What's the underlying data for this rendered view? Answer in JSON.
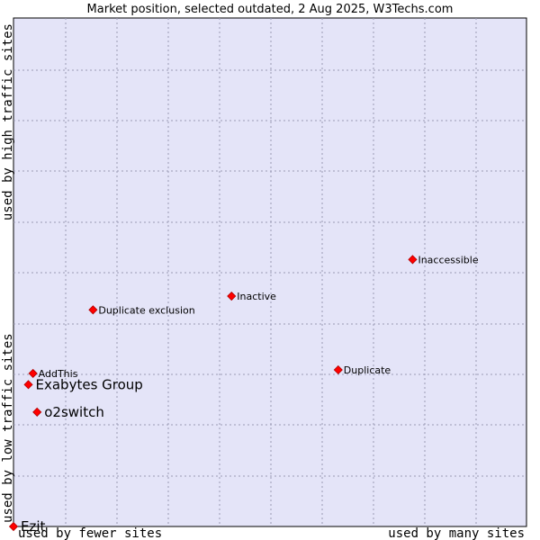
{
  "chart_data": {
    "type": "scatter",
    "title": "Market position, selected outdated, 2 Aug 2025, W3Techs.com",
    "xlabel_left": "used by fewer sites",
    "xlabel_right": "used by many sites",
    "ylabel_low": "used by low traffic sites",
    "ylabel_high": "used by high traffic sites",
    "xlim": [
      0,
      1
    ],
    "ylim": [
      0,
      1
    ],
    "grid": true,
    "colors": {
      "plot_bg": "#e4e4f8",
      "point": "#ff0000",
      "point_stroke": "#b00000"
    },
    "points": [
      {
        "label": "Inaccessible",
        "x": 0.778,
        "y": 0.525,
        "emphasis": false
      },
      {
        "label": "Inactive",
        "x": 0.425,
        "y": 0.453,
        "emphasis": false
      },
      {
        "label": "Duplicate exclusion",
        "x": 0.155,
        "y": 0.426,
        "emphasis": false
      },
      {
        "label": "Duplicate",
        "x": 0.633,
        "y": 0.308,
        "emphasis": false
      },
      {
        "label": "AddThis",
        "x": 0.038,
        "y": 0.301,
        "emphasis": false
      },
      {
        "label": "Exabytes Group",
        "x": 0.029,
        "y": 0.279,
        "emphasis": true
      },
      {
        "label": "o2switch",
        "x": 0.046,
        "y": 0.225,
        "emphasis": true
      },
      {
        "label": "Ezit",
        "x": 0.0,
        "y": 0.0,
        "emphasis": true
      }
    ]
  }
}
